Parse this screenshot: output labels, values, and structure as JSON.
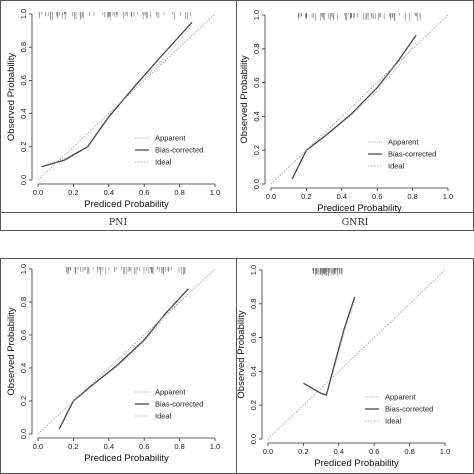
{
  "captions": [
    "PNI",
    "GNRI"
  ],
  "chart_data": [
    {
      "type": "line",
      "xlabel": "Prediced Probability",
      "ylabel": "Observed Probability",
      "xlim": [
        0,
        1
      ],
      "ylim": [
        0,
        1
      ],
      "xticks": [
        "0.0",
        "0.2",
        "0.4",
        "0.6",
        "0.8",
        "1.0"
      ],
      "yticks": [
        "0.0",
        "0.2",
        "0.4",
        "0.6",
        "0.8",
        "1.0"
      ],
      "legend": [
        "Apparent",
        "Bias-corrected",
        "Ideal"
      ],
      "legend_position": "bottom-right",
      "series": [
        {
          "name": "Apparent",
          "x": [
            0.02,
            0.15,
            0.28,
            0.4,
            0.55,
            0.7,
            0.87
          ],
          "y": [
            0.08,
            0.13,
            0.2,
            0.39,
            0.56,
            0.72,
            0.93
          ]
        },
        {
          "name": "Bias-corrected",
          "x": [
            0.02,
            0.15,
            0.28,
            0.4,
            0.55,
            0.7,
            0.87
          ],
          "y": [
            0.08,
            0.12,
            0.2,
            0.38,
            0.57,
            0.75,
            0.95
          ]
        },
        {
          "name": "Ideal",
          "x": [
            0,
            1
          ],
          "y": [
            0,
            1
          ]
        }
      ],
      "rug_range": [
        0.0,
        0.9
      ]
    },
    {
      "type": "line",
      "xlabel": "Prediced Probability",
      "ylabel": "Observed Probability",
      "xlim": [
        0,
        1
      ],
      "ylim": [
        0,
        1
      ],
      "xticks": [
        "0.0",
        "0.2",
        "0.4",
        "0.6",
        "0.8",
        "1.0"
      ],
      "yticks": [
        "0.0",
        "0.2",
        "0.4",
        "0.6",
        "0.8",
        "1.0"
      ],
      "legend": [
        "Apparent",
        "Bias-corrected",
        "Ideal"
      ],
      "legend_position": "bottom-right",
      "series": [
        {
          "name": "Apparent",
          "x": [
            0.12,
            0.2,
            0.3,
            0.45,
            0.6,
            0.72,
            0.82
          ],
          "y": [
            0.03,
            0.2,
            0.28,
            0.4,
            0.55,
            0.7,
            0.84
          ]
        },
        {
          "name": "Bias-corrected",
          "x": [
            0.12,
            0.2,
            0.3,
            0.45,
            0.6,
            0.72,
            0.82
          ],
          "y": [
            0.03,
            0.2,
            0.28,
            0.41,
            0.57,
            0.73,
            0.88
          ]
        },
        {
          "name": "Ideal",
          "x": [
            0,
            1
          ],
          "y": [
            0,
            1
          ]
        }
      ],
      "rug_range": [
        0.15,
        0.85
      ]
    },
    {
      "type": "line",
      "xlabel": "Prediced Probability",
      "ylabel": "Observed Probability",
      "xlim": [
        0,
        1
      ],
      "ylim": [
        0,
        1
      ],
      "xticks": [
        "0.0",
        "0.2",
        "0.4",
        "0.6",
        "0.8",
        "1.0"
      ],
      "yticks": [
        "0.0",
        "0.2",
        "0.4",
        "0.6",
        "0.8",
        "1.0"
      ],
      "legend": [
        "Apparent",
        "Bias-corrected",
        "Ideal"
      ],
      "legend_position": "bottom-right",
      "series": [
        {
          "name": "Apparent",
          "x": [
            0.12,
            0.2,
            0.3,
            0.45,
            0.6,
            0.72,
            0.85
          ],
          "y": [
            0.03,
            0.21,
            0.29,
            0.41,
            0.56,
            0.71,
            0.85
          ]
        },
        {
          "name": "Bias-corrected",
          "x": [
            0.12,
            0.2,
            0.3,
            0.45,
            0.6,
            0.72,
            0.85
          ],
          "y": [
            0.03,
            0.2,
            0.29,
            0.42,
            0.57,
            0.73,
            0.88
          ]
        },
        {
          "name": "Ideal",
          "x": [
            0,
            1
          ],
          "y": [
            0,
            1
          ]
        }
      ],
      "rug_range": [
        0.15,
        0.85
      ]
    },
    {
      "type": "line",
      "xlabel": "Prediced Probability",
      "ylabel": "Observed Probability",
      "xlim": [
        0,
        1
      ],
      "ylim": [
        0,
        1
      ],
      "xticks": [
        "0.0",
        "0.2",
        "0.4",
        "0.6",
        "0.8",
        "1.0"
      ],
      "yticks": [
        "0.0",
        "0.2",
        "0.4",
        "0.6",
        "0.8",
        "1.0"
      ],
      "legend": [
        "Apparent",
        "Bias-corrected",
        "Ideal"
      ],
      "legend_position": "bottom-right",
      "series": [
        {
          "name": "Apparent",
          "x": [
            0.2,
            0.25,
            0.3,
            0.33,
            0.37,
            0.43,
            0.49
          ],
          "y": [
            0.31,
            0.29,
            0.27,
            0.27,
            0.4,
            0.62,
            0.82
          ]
        },
        {
          "name": "Bias-corrected",
          "x": [
            0.2,
            0.25,
            0.3,
            0.33,
            0.37,
            0.43,
            0.49
          ],
          "y": [
            0.33,
            0.3,
            0.27,
            0.26,
            0.42,
            0.65,
            0.84
          ]
        },
        {
          "name": "Ideal",
          "x": [
            0,
            1
          ],
          "y": [
            0,
            1
          ]
        }
      ],
      "rug_range": [
        0.25,
        0.42
      ]
    }
  ]
}
